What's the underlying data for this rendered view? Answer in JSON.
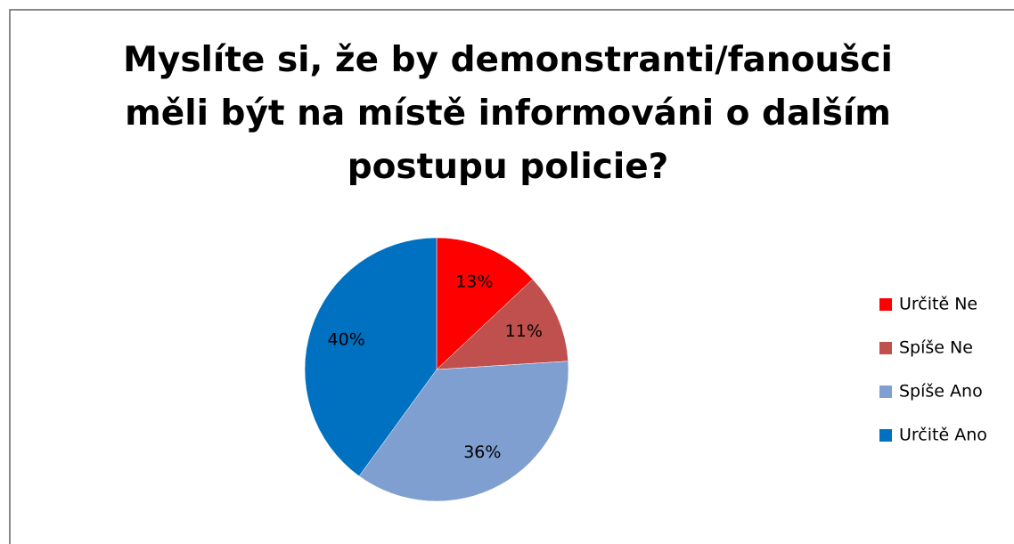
{
  "chart_data": {
    "type": "pie",
    "title": "Myslíte si, že by demonstranti/fanoušci měli být na místě informováni o dalším postupu policie?",
    "categories": [
      "Určitě Ne",
      "Spíše Ne",
      "Spíše Ano",
      "Určitě Ano"
    ],
    "values": [
      13,
      11,
      36,
      40
    ],
    "value_labels": [
      "13%",
      "11%",
      "36%",
      "40%"
    ],
    "colors": [
      "#ff0000",
      "#c0504d",
      "#7f9fd0",
      "#0070c0"
    ],
    "legend": "right"
  }
}
